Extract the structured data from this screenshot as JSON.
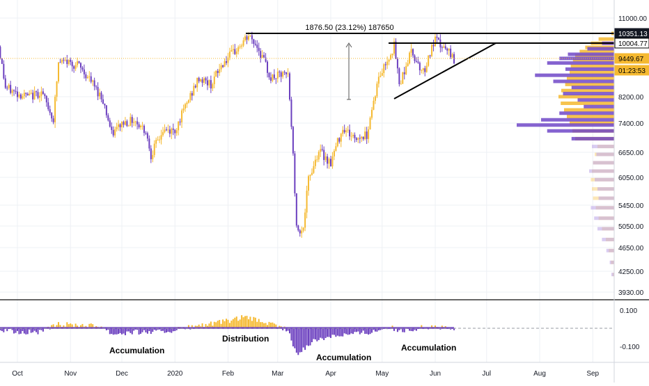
{
  "chart_data": {
    "type": "candlestick",
    "price_axis": {
      "ticks": [
        11000,
        8200,
        7400,
        6650,
        6050,
        5450,
        5050,
        4650,
        4250,
        3930
      ],
      "tick_labels": [
        "11000.00",
        "8200.00",
        "7400.00",
        "6650.00",
        "6050.00",
        "5450.00",
        "5050.00",
        "4650.00",
        "4250.00",
        "3930.00"
      ],
      "tags": [
        {
          "label": "10351.13",
          "value": 10351.13,
          "style": "dark"
        },
        {
          "label": "10004.77",
          "value": 10004.77,
          "style": "outline"
        },
        {
          "label": "9449.67",
          "value": 9449.67,
          "style": "gold"
        },
        {
          "label": "01:23:53",
          "value": 9150,
          "style": "gold"
        }
      ]
    },
    "time_axis": {
      "labels": [
        "Oct",
        "Nov",
        "Dec",
        "2020",
        "Feb",
        "Mar",
        "Apr",
        "May",
        "Jun",
        "Jul",
        "Aug",
        "Sep"
      ]
    },
    "price_path": [
      [
        "2019-09-20",
        9900
      ],
      [
        "2019-09-24",
        8500
      ],
      [
        "2019-10-01",
        8300
      ],
      [
        "2019-10-08",
        8200
      ],
      [
        "2019-10-15",
        8350
      ],
      [
        "2019-10-22",
        7500
      ],
      [
        "2019-10-25",
        9300
      ],
      [
        "2019-10-30",
        9350
      ],
      [
        "2019-11-06",
        9200
      ],
      [
        "2019-11-13",
        8700
      ],
      [
        "2019-11-20",
        8100
      ],
      [
        "2019-11-25",
        7100
      ],
      [
        "2019-12-01",
        7400
      ],
      [
        "2019-12-08",
        7500
      ],
      [
        "2019-12-15",
        7200
      ],
      [
        "2019-12-18",
        6600
      ],
      [
        "2019-12-25",
        7200
      ],
      [
        "2020-01-01",
        7200
      ],
      [
        "2020-01-08",
        8000
      ],
      [
        "2020-01-15",
        8800
      ],
      [
        "2020-01-22",
        8600
      ],
      [
        "2020-01-29",
        9300
      ],
      [
        "2020-02-05",
        9700
      ],
      [
        "2020-02-13",
        10250
      ],
      [
        "2020-02-18",
        9900
      ],
      [
        "2020-02-26",
        8800
      ],
      [
        "2020-03-03",
        8900
      ],
      [
        "2020-03-07",
        8900
      ],
      [
        "2020-03-12",
        5000
      ],
      [
        "2020-03-16",
        5000
      ],
      [
        "2020-03-19",
        6000
      ],
      [
        "2020-03-25",
        6700
      ],
      [
        "2020-04-01",
        6400
      ],
      [
        "2020-04-08",
        7300
      ],
      [
        "2020-04-15",
        7000
      ],
      [
        "2020-04-22",
        7100
      ],
      [
        "2020-04-29",
        8800
      ],
      [
        "2020-05-08",
        9900
      ],
      [
        "2020-05-11",
        8600
      ],
      [
        "2020-05-18",
        9700
      ],
      [
        "2020-05-25",
        9000
      ],
      [
        "2020-06-01",
        10100
      ],
      [
        "2020-06-08",
        9700
      ],
      [
        "2020-06-12",
        9450
      ]
    ],
    "volume_profile": {
      "gold": [
        [
          10351,
          0.05
        ],
        [
          10150,
          0.28
        ],
        [
          10000,
          0.42
        ],
        [
          9850,
          0.52
        ],
        [
          9700,
          0.62
        ],
        [
          9550,
          0.7
        ],
        [
          9400,
          0.74
        ],
        [
          9200,
          0.78
        ],
        [
          9000,
          0.8
        ],
        [
          8800,
          0.85
        ],
        [
          8600,
          0.88
        ],
        [
          8400,
          0.95
        ],
        [
          8200,
          1.0
        ],
        [
          8000,
          0.96
        ],
        [
          7800,
          0.9
        ],
        [
          7600,
          0.85
        ],
        [
          7400,
          0.8
        ],
        [
          7200,
          0.75
        ],
        [
          7000,
          0.7
        ]
      ],
      "purple": [
        [
          10000,
          0.1
        ],
        [
          9800,
          0.22
        ],
        [
          9600,
          0.38
        ],
        [
          9450,
          0.45
        ],
        [
          9300,
          0.55
        ],
        [
          9100,
          0.4
        ],
        [
          8900,
          0.65
        ],
        [
          8700,
          0.5
        ],
        [
          8500,
          0.35
        ],
        [
          8300,
          0.42
        ],
        [
          8100,
          0.3
        ],
        [
          7900,
          0.25
        ],
        [
          7700,
          0.45
        ],
        [
          7500,
          0.6
        ],
        [
          7350,
          0.8
        ],
        [
          7200,
          0.55
        ],
        [
          7000,
          0.35
        ]
      ],
      "faint_gold": [
        [
          6800,
          0.3
        ],
        [
          6600,
          0.35
        ],
        [
          6400,
          0.38
        ],
        [
          6200,
          0.4
        ],
        [
          6000,
          0.42
        ],
        [
          5800,
          0.4
        ],
        [
          5600,
          0.38
        ],
        [
          5400,
          0.33
        ],
        [
          5200,
          0.28
        ],
        [
          5000,
          0.22
        ],
        [
          4800,
          0.15
        ],
        [
          4600,
          0.1
        ],
        [
          4400,
          0.06
        ],
        [
          4200,
          0.03
        ]
      ],
      "faint_purple": [
        [
          6800,
          0.4
        ],
        [
          6600,
          0.32
        ],
        [
          6400,
          0.38
        ],
        [
          6200,
          0.45
        ],
        [
          6000,
          0.35
        ],
        [
          5800,
          0.3
        ],
        [
          5600,
          0.28
        ],
        [
          5400,
          0.42
        ],
        [
          5200,
          0.36
        ],
        [
          5000,
          0.3
        ],
        [
          4800,
          0.22
        ],
        [
          4600,
          0.14
        ],
        [
          4400,
          0.08
        ],
        [
          4200,
          0.05
        ]
      ]
    },
    "oscillator": {
      "ticks": [
        0.1,
        -0.1
      ],
      "tick_labels": [
        "0.100",
        "-0.100"
      ],
      "path": [
        [
          "2019-09-20",
          -0.01
        ],
        [
          "2019-10-01",
          -0.02
        ],
        [
          "2019-10-15",
          -0.02
        ],
        [
          "2019-10-25",
          0.02
        ],
        [
          "2019-11-06",
          0.02
        ],
        [
          "2019-11-20",
          0.01
        ],
        [
          "2019-11-25",
          -0.03
        ],
        [
          "2019-12-10",
          -0.02
        ],
        [
          "2019-12-25",
          -0.02
        ],
        [
          "2020-01-10",
          0.005
        ],
        [
          "2020-01-20",
          0.02
        ],
        [
          "2020-02-01",
          0.04
        ],
        [
          "2020-02-10",
          0.06
        ],
        [
          "2020-02-20",
          0.04
        ],
        [
          "2020-03-01",
          0.01
        ],
        [
          "2020-03-07",
          -0.01
        ],
        [
          "2020-03-12",
          -0.15
        ],
        [
          "2020-03-20",
          -0.08
        ],
        [
          "2020-04-01",
          -0.04
        ],
        [
          "2020-04-15",
          -0.03
        ],
        [
          "2020-04-25",
          -0.02
        ],
        [
          "2020-05-05",
          0.01
        ],
        [
          "2020-05-12",
          -0.02
        ],
        [
          "2020-05-20",
          0.0
        ],
        [
          "2020-06-01",
          0.01
        ],
        [
          "2020-06-12",
          -0.01
        ]
      ]
    },
    "annotations": {
      "measure_label": "1876.50 (23.12%) 187650",
      "accumulation_label": "Accumulation",
      "distribution_label": "Distribution"
    },
    "colors": {
      "up": "#f5b930",
      "down": "#6b3fbf",
      "grid": "#eef0f4",
      "axis_text": "#131722",
      "gold_profile": "#f5b930",
      "purple_profile": "#7048c8"
    }
  }
}
